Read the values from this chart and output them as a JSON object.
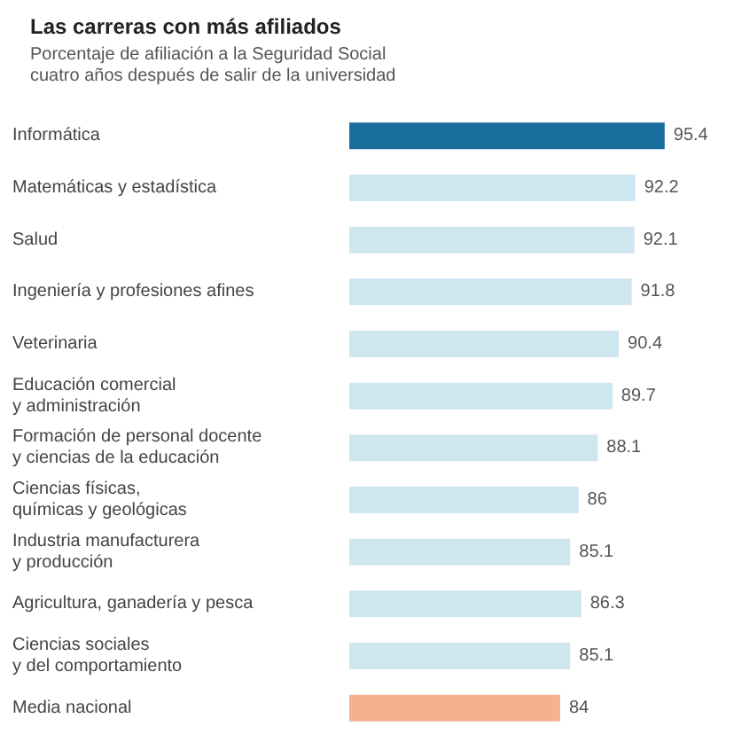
{
  "chart_data": {
    "type": "bar",
    "orientation": "horizontal",
    "title": "Las carreras con más afiliados",
    "subtitle": "Porcentaje de afiliación a la Seguridad Social\ncuatro años después de salir de la universidad",
    "categories": [
      "Informática",
      "Matemáticas y estadística",
      "Salud",
      "Ingeniería y profesiones afines",
      "Veterinaria",
      "Educación comercial\ny administración",
      "Formación de personal docente\ny ciencias de la educación",
      "Ciencias físicas,\nquímicas y geológicas",
      "Industria manufacturera\ny producción",
      "Agricultura, ganadería y pesca",
      "Ciencias sociales\ny del comportamiento",
      "Media nacional"
    ],
    "values": [
      95.4,
      92.2,
      92.1,
      91.8,
      90.4,
      89.7,
      88.1,
      86.0,
      85.1,
      86.3,
      85.1,
      84.0
    ],
    "colors": [
      "#1a6e9e",
      "#cde6ef",
      "#cde6ef",
      "#cde6ef",
      "#cde6ef",
      "#cde6ef",
      "#cde6ef",
      "#cde6ef",
      "#cde6ef",
      "#cde6ef",
      "#cde6ef",
      "#f4b08f"
    ],
    "xlim": [
      61,
      96
    ],
    "tick_labels": "y",
    "data_labels": true
  }
}
